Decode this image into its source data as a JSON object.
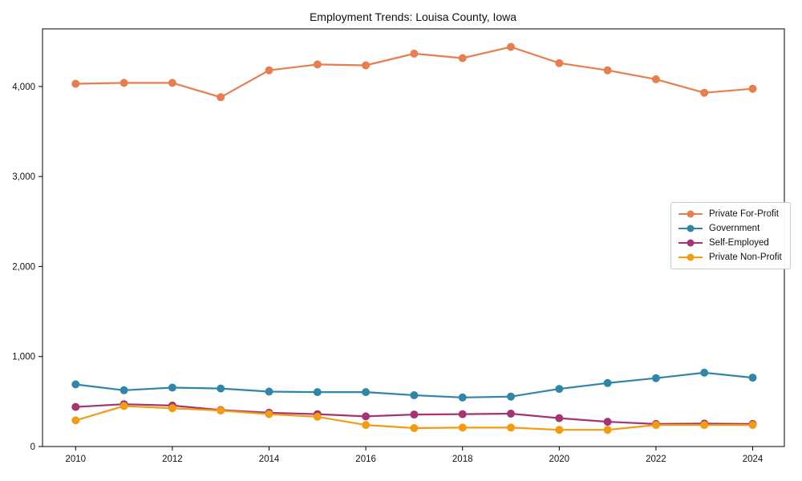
{
  "chart_data": {
    "type": "line",
    "title": "Employment Trends: Louisa County, Iowa",
    "xlabel": "",
    "ylabel": "",
    "grid": false,
    "legend_position": "center-right",
    "x": [
      2010,
      2011,
      2012,
      2013,
      2014,
      2015,
      2016,
      2017,
      2018,
      2019,
      2020,
      2021,
      2022,
      2023,
      2024
    ],
    "x_ticks": [
      2010,
      2012,
      2014,
      2016,
      2018,
      2020,
      2022,
      2024
    ],
    "x_tick_labels": [
      "2010",
      "2012",
      "2014",
      "2016",
      "2018",
      "2020",
      "2022",
      "2024"
    ],
    "y_ticks": [
      0,
      1000,
      2000,
      3000,
      4000
    ],
    "y_tick_labels": [
      "0",
      "1,000",
      "2,000",
      "3,000",
      "4,000"
    ],
    "xlim": [
      2009.315,
      2024.655
    ],
    "ylim": [
      0,
      4640
    ],
    "series": [
      {
        "name": "Private For-Profit",
        "color": "#E87D4E",
        "values": [
          4030,
          4040,
          4040,
          3880,
          4180,
          4245,
          4235,
          4365,
          4315,
          4440,
          4260,
          4180,
          4080,
          3930,
          3975
        ]
      },
      {
        "name": "Government",
        "color": "#3186A8",
        "values": [
          690,
          625,
          655,
          645,
          610,
          605,
          605,
          570,
          545,
          555,
          640,
          705,
          760,
          820,
          765
        ]
      },
      {
        "name": "Self-Employed",
        "color": "#A23572",
        "values": [
          440,
          470,
          455,
          405,
          375,
          360,
          335,
          355,
          360,
          365,
          315,
          275,
          250,
          255,
          250
        ]
      },
      {
        "name": "Private Non-Profit",
        "color": "#F39C12",
        "values": [
          290,
          450,
          425,
          400,
          360,
          330,
          240,
          205,
          210,
          210,
          185,
          185,
          240,
          240,
          240
        ]
      }
    ]
  },
  "colors": {
    "background": "#ffffff",
    "axis": "#000000",
    "text": "#111111",
    "legend_border": "#c9c9c9"
  }
}
